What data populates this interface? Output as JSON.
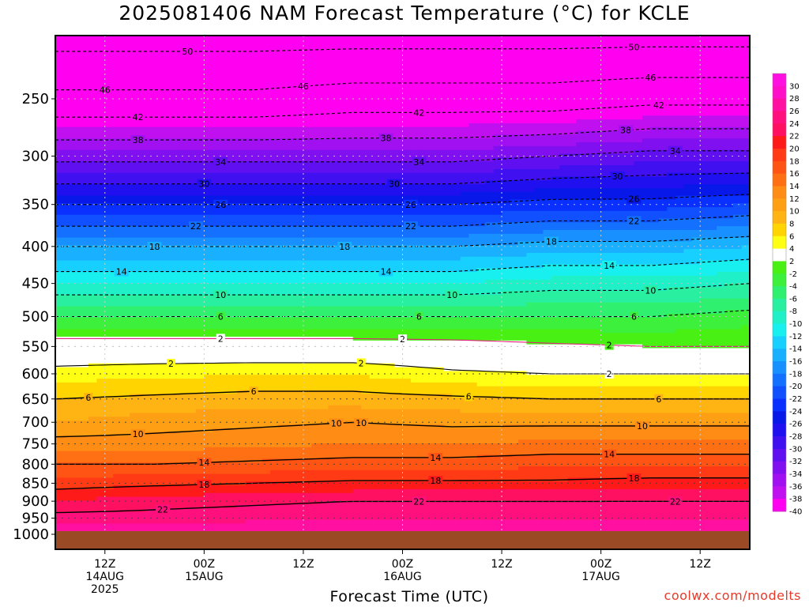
{
  "title": "2025081406 NAM Forecast Temperature (°C) for KCLE",
  "xlabel": "Forecast Time (UTC)",
  "watermark": "coolwx.com/modelts",
  "chart_data": {
    "type": "heatmap",
    "title": "2025081406 NAM Forecast Temperature (°C) for KCLE",
    "xlabel": "Forecast Time (UTC)",
    "ylabel": "",
    "x_ticks": [
      {
        "hour": 6,
        "lines": [
          "12Z",
          "14AUG",
          "2025"
        ]
      },
      {
        "hour": 18,
        "lines": [
          "00Z",
          "15AUG"
        ]
      },
      {
        "hour": 30,
        "lines": [
          "12Z"
        ]
      },
      {
        "hour": 42,
        "lines": [
          "00Z",
          "16AUG"
        ]
      },
      {
        "hour": 54,
        "lines": [
          "12Z"
        ]
      },
      {
        "hour": 66,
        "lines": [
          "00Z",
          "17AUG"
        ]
      },
      {
        "hour": 78,
        "lines": [
          "12Z"
        ]
      }
    ],
    "x_range_hours": [
      0,
      84
    ],
    "y_axis": "pressure (hPa), log scale, inverted",
    "y_ticks": [
      250,
      300,
      350,
      400,
      450,
      500,
      550,
      600,
      650,
      700,
      750,
      800,
      850,
      900,
      950,
      1000
    ],
    "y_range": [
      200,
      1030
    ],
    "grid": true,
    "surface_fill": "#9b4a26",
    "profiles": [
      {
        "hour": 0,
        "points": [
          [
            201,
            -52
          ],
          [
            250,
            -45
          ],
          [
            300,
            -35
          ],
          [
            350,
            -26
          ],
          [
            400,
            -18
          ],
          [
            450,
            -12
          ],
          [
            500,
            -6
          ],
          [
            550,
            -0.5
          ],
          [
            600,
            3
          ],
          [
            650,
            6
          ],
          [
            700,
            8
          ],
          [
            750,
            11
          ],
          [
            800,
            14
          ],
          [
            850,
            17
          ],
          [
            900,
            20
          ],
          [
            950,
            23
          ],
          [
            1000,
            26
          ]
        ]
      },
      {
        "hour": 12,
        "points": [
          [
            201,
            -52
          ],
          [
            250,
            -45
          ],
          [
            300,
            -35
          ],
          [
            350,
            -26
          ],
          [
            400,
            -18
          ],
          [
            450,
            -12
          ],
          [
            500,
            -6
          ],
          [
            550,
            -0.5
          ],
          [
            600,
            3.5
          ],
          [
            650,
            6.5
          ],
          [
            700,
            9
          ],
          [
            750,
            11
          ],
          [
            800,
            14
          ],
          [
            850,
            17.5
          ],
          [
            900,
            21
          ],
          [
            950,
            23
          ],
          [
            1000,
            26
          ]
        ]
      },
      {
        "hour": 24,
        "points": [
          [
            201,
            -52
          ],
          [
            250,
            -45
          ],
          [
            300,
            -35
          ],
          [
            350,
            -26
          ],
          [
            400,
            -18
          ],
          [
            450,
            -12
          ],
          [
            500,
            -6
          ],
          [
            550,
            -0.5
          ],
          [
            600,
            3.8
          ],
          [
            650,
            7
          ],
          [
            700,
            9.5
          ],
          [
            750,
            11.5
          ],
          [
            800,
            14.5
          ],
          [
            850,
            18
          ],
          [
            900,
            21.5
          ],
          [
            950,
            23.5
          ],
          [
            1000,
            26
          ]
        ]
      },
      {
        "hour": 36,
        "points": [
          [
            201,
            -52
          ],
          [
            250,
            -44
          ],
          [
            300,
            -35
          ],
          [
            350,
            -26
          ],
          [
            400,
            -18
          ],
          [
            450,
            -12
          ],
          [
            500,
            -6
          ],
          [
            550,
            -0.5
          ],
          [
            600,
            3.8
          ],
          [
            650,
            7
          ],
          [
            700,
            10
          ],
          [
            750,
            12
          ],
          [
            800,
            15
          ],
          [
            850,
            18.5
          ],
          [
            900,
            22
          ],
          [
            950,
            24
          ],
          [
            1000,
            26
          ]
        ]
      },
      {
        "hour": 48,
        "points": [
          [
            201,
            -52
          ],
          [
            250,
            -44
          ],
          [
            300,
            -35
          ],
          [
            350,
            -26
          ],
          [
            400,
            -18
          ],
          [
            450,
            -12
          ],
          [
            500,
            -6
          ],
          [
            550,
            -0.8
          ],
          [
            600,
            2.5
          ],
          [
            650,
            6.5
          ],
          [
            700,
            9.5
          ],
          [
            750,
            12
          ],
          [
            800,
            15
          ],
          [
            850,
            18.5
          ],
          [
            900,
            22
          ],
          [
            950,
            24
          ],
          [
            1000,
            26
          ]
        ]
      },
      {
        "hour": 60,
        "points": [
          [
            201,
            -52
          ],
          [
            250,
            -44
          ],
          [
            300,
            -34
          ],
          [
            350,
            -25
          ],
          [
            400,
            -17
          ],
          [
            450,
            -11
          ],
          [
            500,
            -6
          ],
          [
            550,
            -1.5
          ],
          [
            600,
            2
          ],
          [
            650,
            6
          ],
          [
            700,
            9.5
          ],
          [
            750,
            12.5
          ],
          [
            800,
            15.5
          ],
          [
            850,
            18.5
          ],
          [
            900,
            22
          ],
          [
            950,
            24
          ],
          [
            1000,
            26
          ]
        ]
      },
      {
        "hour": 72,
        "points": [
          [
            201,
            -52
          ],
          [
            250,
            -43
          ],
          [
            300,
            -33
          ],
          [
            350,
            -25
          ],
          [
            400,
            -17
          ],
          [
            450,
            -11
          ],
          [
            500,
            -6
          ],
          [
            550,
            -2
          ],
          [
            600,
            2
          ],
          [
            650,
            6
          ],
          [
            700,
            9.5
          ],
          [
            750,
            12.5
          ],
          [
            800,
            15.5
          ],
          [
            850,
            19
          ],
          [
            900,
            22
          ],
          [
            950,
            24
          ],
          [
            1000,
            26
          ]
        ]
      },
      {
        "hour": 84,
        "points": [
          [
            201,
            -52
          ],
          [
            250,
            -43
          ],
          [
            300,
            -33
          ],
          [
            350,
            -24
          ],
          [
            400,
            -16
          ],
          [
            450,
            -10
          ],
          [
            500,
            -5
          ],
          [
            550,
            -2
          ],
          [
            600,
            2
          ],
          [
            650,
            6
          ],
          [
            700,
            9.5
          ],
          [
            750,
            12.5
          ],
          [
            800,
            15.5
          ],
          [
            850,
            19
          ],
          [
            900,
            22
          ],
          [
            950,
            24
          ],
          [
            1000,
            26
          ]
        ]
      }
    ],
    "contour_levels": [
      -50,
      -46,
      -42,
      -38,
      -34,
      -30,
      -26,
      -22,
      -18,
      -14,
      -10,
      -6,
      -2,
      2,
      6,
      10,
      14,
      18,
      22
    ],
    "contour_labels": [
      {
        "hour": 16,
        "level": -50
      },
      {
        "hour": 70,
        "level": -50
      },
      {
        "hour": 30,
        "level": -46
      },
      {
        "hour": 72,
        "level": -46
      },
      {
        "hour": 6,
        "level": -46
      },
      {
        "hour": 10,
        "level": -42
      },
      {
        "hour": 44,
        "level": -42
      },
      {
        "hour": 73,
        "level": -42
      },
      {
        "hour": 10,
        "level": -38
      },
      {
        "hour": 40,
        "level": -38
      },
      {
        "hour": 69,
        "level": -38
      },
      {
        "hour": 75,
        "level": -34
      },
      {
        "hour": 20,
        "level": -34
      },
      {
        "hour": 44,
        "level": -34
      },
      {
        "hour": 68,
        "level": -30
      },
      {
        "hour": 18,
        "level": -30
      },
      {
        "hour": 41,
        "level": -30
      },
      {
        "hour": 70,
        "level": -26
      },
      {
        "hour": 20,
        "level": -26
      },
      {
        "hour": 43,
        "level": -26
      },
      {
        "hour": 70,
        "level": -22
      },
      {
        "hour": 17,
        "level": -22
      },
      {
        "hour": 43,
        "level": -22
      },
      {
        "hour": 12,
        "level": -18
      },
      {
        "hour": 35,
        "level": -18
      },
      {
        "hour": 60,
        "level": -18
      },
      {
        "hour": 8,
        "level": -14
      },
      {
        "hour": 40,
        "level": -14
      },
      {
        "hour": 67,
        "level": -14
      },
      {
        "hour": 20,
        "level": -10
      },
      {
        "hour": 48,
        "level": -10
      },
      {
        "hour": 72,
        "level": -10
      },
      {
        "hour": 20,
        "level": -6
      },
      {
        "hour": 44,
        "level": -6
      },
      {
        "hour": 70,
        "level": -6
      },
      {
        "hour": 20,
        "level": -2
      },
      {
        "hour": 42,
        "level": -2
      },
      {
        "hour": 67,
        "level": -2
      },
      {
        "hour": 14,
        "level": 2
      },
      {
        "hour": 37,
        "level": 2
      },
      {
        "hour": 67,
        "level": 2
      },
      {
        "hour": 24,
        "level": 6
      },
      {
        "hour": 50,
        "level": 6
      },
      {
        "hour": 73,
        "level": 6
      },
      {
        "hour": 4,
        "level": 6
      },
      {
        "hour": 37,
        "level": 10
      },
      {
        "hour": 34,
        "level": 10
      },
      {
        "hour": 10,
        "level": 10
      },
      {
        "hour": 71,
        "level": 10
      },
      {
        "hour": 18,
        "level": 14
      },
      {
        "hour": 46,
        "level": 14
      },
      {
        "hour": 67,
        "level": 14
      },
      {
        "hour": 18,
        "level": 18
      },
      {
        "hour": 46,
        "level": 18
      },
      {
        "hour": 70,
        "level": 18
      },
      {
        "hour": 13,
        "level": 22
      },
      {
        "hour": 44,
        "level": 22
      },
      {
        "hour": 75,
        "level": 22
      }
    ],
    "colorbar": {
      "labels": [
        30,
        28,
        26,
        24,
        22,
        20,
        18,
        16,
        14,
        12,
        10,
        8,
        6,
        4,
        2,
        -2,
        -4,
        -6,
        -8,
        -10,
        -12,
        -14,
        -16,
        -18,
        -20,
        -22,
        -24,
        -26,
        -28,
        -30,
        -32,
        -34,
        -36,
        -38,
        -40
      ],
      "bins": [
        {
          "lo": 28,
          "hi": 99,
          "color": "#ff10e0"
        },
        {
          "lo": 26,
          "hi": 28,
          "color": "#ff10c8"
        },
        {
          "lo": 24,
          "hi": 26,
          "color": "#ff10a0"
        },
        {
          "lo": 22,
          "hi": 24,
          "color": "#ff107c"
        },
        {
          "lo": 20,
          "hi": 22,
          "color": "#ff1060"
        },
        {
          "lo": 18,
          "hi": 20,
          "color": "#ff1a1a"
        },
        {
          "lo": 16,
          "hi": 18,
          "color": "#ff3a14"
        },
        {
          "lo": 14,
          "hi": 16,
          "color": "#ff5414"
        },
        {
          "lo": 12,
          "hi": 14,
          "color": "#ff7014"
        },
        {
          "lo": 10,
          "hi": 12,
          "color": "#ff8c14"
        },
        {
          "lo": 8,
          "hi": 10,
          "color": "#ffa014"
        },
        {
          "lo": 6,
          "hi": 8,
          "color": "#ffb414"
        },
        {
          "lo": 4,
          "hi": 6,
          "color": "#ffd400"
        },
        {
          "lo": 2,
          "hi": 4,
          "color": "#ffff14"
        },
        {
          "lo": -2,
          "hi": 2,
          "color": "#ffffff"
        },
        {
          "lo": -4,
          "hi": -2,
          "color": "#48f014"
        },
        {
          "lo": -6,
          "hi": -4,
          "color": "#3cf03c"
        },
        {
          "lo": -8,
          "hi": -6,
          "color": "#30f070"
        },
        {
          "lo": -10,
          "hi": -8,
          "color": "#28f0a0"
        },
        {
          "lo": -12,
          "hi": -10,
          "color": "#20f0c8"
        },
        {
          "lo": -14,
          "hi": -12,
          "color": "#18f0f0"
        },
        {
          "lo": -16,
          "hi": -14,
          "color": "#18d0ff"
        },
        {
          "lo": -18,
          "hi": -16,
          "color": "#18b0ff"
        },
        {
          "lo": -20,
          "hi": -18,
          "color": "#1890ff"
        },
        {
          "lo": -22,
          "hi": -20,
          "color": "#1470ff"
        },
        {
          "lo": -24,
          "hi": -22,
          "color": "#1050ff"
        },
        {
          "lo": -26,
          "hi": -24,
          "color": "#0a30ff"
        },
        {
          "lo": -28,
          "hi": -26,
          "color": "#0818e8"
        },
        {
          "lo": -30,
          "hi": -28,
          "color": "#2010f0"
        },
        {
          "lo": -32,
          "hi": -30,
          "color": "#4010f0"
        },
        {
          "lo": -34,
          "hi": -32,
          "color": "#6010f0"
        },
        {
          "lo": -36,
          "hi": -34,
          "color": "#8010f0"
        },
        {
          "lo": -38,
          "hi": -36,
          "color": "#a010f0"
        },
        {
          "lo": -40,
          "hi": -38,
          "color": "#c010f0"
        },
        {
          "lo": -99,
          "hi": -40,
          "color": "#ff00f0"
        }
      ]
    }
  }
}
